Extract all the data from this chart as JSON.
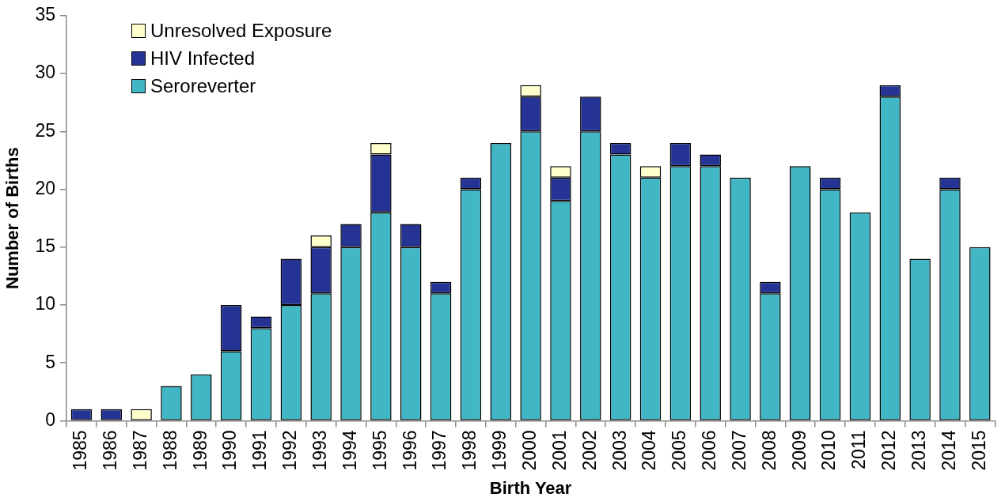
{
  "chart_data": {
    "type": "bar",
    "stacked": true,
    "xlabel": "Birth Year",
    "ylabel": "Number of Births",
    "categories": [
      "1985",
      "1986",
      "1987",
      "1988",
      "1989",
      "1990",
      "1991",
      "1992",
      "1993",
      "1994",
      "1995",
      "1996",
      "1997",
      "1998",
      "1999",
      "2000",
      "2001",
      "2002",
      "2003",
      "2004",
      "2005",
      "2006",
      "2007",
      "2008",
      "2009",
      "2010",
      "2011",
      "2012",
      "2013",
      "2014",
      "2015"
    ],
    "series": [
      {
        "name": "Seroreverter",
        "color": "#41b6c4",
        "values": [
          0,
          0,
          0,
          3,
          4,
          6,
          8,
          10,
          11,
          15,
          18,
          15,
          11,
          20,
          24,
          25,
          19,
          25,
          23,
          21,
          22,
          22,
          21,
          11,
          22,
          20,
          18,
          28,
          14,
          20,
          15
        ]
      },
      {
        "name": "HIV Infected",
        "color": "#253494",
        "values": [
          1,
          1,
          0,
          0,
          0,
          4,
          1,
          4,
          4,
          2,
          5,
          2,
          1,
          1,
          0,
          3,
          2,
          3,
          1,
          0,
          2,
          1,
          0,
          1,
          0,
          1,
          0,
          1,
          0,
          1,
          0
        ]
      },
      {
        "name": "Unresolved Exposure",
        "color": "#ffffcc",
        "values": [
          0,
          0,
          1,
          0,
          0,
          0,
          0,
          0,
          1,
          0,
          1,
          0,
          0,
          0,
          0,
          1,
          1,
          0,
          0,
          1,
          0,
          0,
          0,
          0,
          0,
          0,
          0,
          0,
          0,
          0,
          0
        ]
      }
    ],
    "ylim": [
      0,
      35
    ],
    "yticks": [
      0,
      5,
      10,
      15,
      20,
      25,
      30,
      35
    ],
    "grid": false,
    "legend": "top left"
  }
}
